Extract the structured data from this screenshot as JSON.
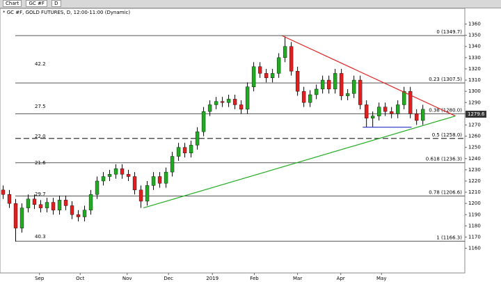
{
  "toolbar": {
    "window": "Chart",
    "symbol": "GC #F",
    "period": "D"
  },
  "chart_data": {
    "type": "candlestick",
    "title": "* GC #F, GOLD FUTURES, D, 12:00-11:00 (Dynamic)",
    "open": [
      1212,
      1208,
      1200,
      1178,
      1196,
      1204,
      1199,
      1196,
      1201,
      1194,
      1203,
      1198,
      1190,
      1188,
      1194,
      1208,
      1220,
      1224,
      1226,
      1231,
      1226,
      1224,
      1212,
      1202,
      1216,
      1224,
      1218,
      1228,
      1242,
      1250,
      1245,
      1252,
      1264,
      1282,
      1288,
      1291,
      1290,
      1293,
      1288,
      1284,
      1304,
      1322,
      1316,
      1312,
      1316,
      1330,
      1340,
      1318,
      1300,
      1290,
      1297,
      1302,
      1310,
      1302,
      1316,
      1296,
      1298,
      1310,
      1288,
      1276,
      1278,
      1286,
      1282,
      1280,
      1288,
      1300,
      1280,
      1274
    ],
    "high": [
      1216,
      1212,
      1204,
      1200,
      1208,
      1208,
      1203,
      1205,
      1205,
      1207,
      1207,
      1202,
      1194,
      1198,
      1212,
      1224,
      1228,
      1230,
      1235,
      1235,
      1230,
      1228,
      1216,
      1220,
      1228,
      1228,
      1232,
      1246,
      1254,
      1254,
      1256,
      1268,
      1286,
      1292,
      1295,
      1295,
      1297,
      1297,
      1292,
      1308,
      1326,
      1326,
      1320,
      1320,
      1334,
      1349,
      1344,
      1322,
      1304,
      1301,
      1306,
      1314,
      1314,
      1320,
      1320,
      1302,
      1314,
      1314,
      1292,
      1282,
      1290,
      1290,
      1286,
      1292,
      1304,
      1304,
      1284,
      1288
    ],
    "low": [
      1204,
      1196,
      1166,
      1174,
      1192,
      1195,
      1192,
      1192,
      1190,
      1190,
      1194,
      1186,
      1184,
      1184,
      1190,
      1204,
      1216,
      1220,
      1222,
      1222,
      1220,
      1208,
      1196,
      1198,
      1212,
      1214,
      1214,
      1224,
      1238,
      1241,
      1241,
      1248,
      1260,
      1278,
      1284,
      1286,
      1286,
      1284,
      1280,
      1280,
      1300,
      1312,
      1308,
      1308,
      1312,
      1326,
      1314,
      1296,
      1286,
      1286,
      1293,
      1298,
      1298,
      1298,
      1292,
      1292,
      1294,
      1284,
      1268,
      1268,
      1274,
      1278,
      1276,
      1276,
      1284,
      1276,
      1270,
      1270
    ],
    "close": [
      1208,
      1200,
      1178,
      1196,
      1204,
      1199,
      1196,
      1201,
      1194,
      1203,
      1198,
      1190,
      1188,
      1194,
      1208,
      1220,
      1224,
      1226,
      1231,
      1226,
      1224,
      1212,
      1202,
      1216,
      1224,
      1218,
      1228,
      1242,
      1250,
      1245,
      1252,
      1264,
      1282,
      1288,
      1291,
      1290,
      1293,
      1288,
      1284,
      1304,
      1322,
      1316,
      1312,
      1316,
      1330,
      1340,
      1318,
      1300,
      1290,
      1297,
      1302,
      1310,
      1302,
      1316,
      1296,
      1298,
      1310,
      1288,
      1276,
      1278,
      1286,
      1282,
      1280,
      1288,
      1300,
      1280,
      1274,
      1284
    ],
    "up_color": "#22aa22",
    "down_color": "#e02020",
    "xlim": [
      -0.5,
      73.7
    ],
    "ylim": [
      1138,
      1374
    ],
    "xticks": [
      {
        "value": 5.8,
        "label": "Sep"
      },
      {
        "value": 12.3,
        "label": "Oct"
      },
      {
        "value": 19.8,
        "label": "Nov"
      },
      {
        "value": 26.4,
        "label": "Dec"
      },
      {
        "value": 33.4,
        "label": "2019"
      },
      {
        "value": 40.1,
        "label": "Feb"
      },
      {
        "value": 47,
        "label": "Mar"
      },
      {
        "value": 53.9,
        "label": "Apr"
      },
      {
        "value": 60.4,
        "label": "May"
      }
    ],
    "yticks": [
      1160,
      1170,
      1180,
      1190,
      1200,
      1210,
      1220,
      1230,
      1240,
      1250,
      1260,
      1270,
      1280,
      1290,
      1300,
      1310,
      1320,
      1330,
      1340,
      1350,
      1360
    ],
    "fib_levels": [
      {
        "value": 1349.7,
        "label": "0 (1349.7)"
      },
      {
        "value": 1307.5,
        "label": "0.23 (1307.5)"
      },
      {
        "value": 1280.0,
        "label": "0.38 (1280.0)"
      },
      {
        "value": 1258.0,
        "label": "0.5 (1258.0)"
      },
      {
        "value": 1236.3,
        "label": "0.618 (1236.3)"
      },
      {
        "value": 1206.6,
        "label": "0.78 (1206.6)"
      },
      {
        "value": 1166.3,
        "label": "1 (1166.3)"
      }
    ],
    "trendlines": [
      {
        "color": "#e02020",
        "from": [
          44.5,
          1349.7
        ],
        "to": [
          72.2,
          1278
        ]
      },
      {
        "color": "#22aa22",
        "from": [
          22.4,
          1196
        ],
        "to": [
          72.2,
          1278
        ]
      },
      {
        "color": "#2030c0",
        "from": [
          57.4,
          1268
        ],
        "to": [
          65.2,
          1268
        ]
      }
    ],
    "side_labels": [
      "42.2",
      "27.5",
      "22.0",
      "21.6",
      "29.7",
      "40.3"
    ],
    "last_price": 1279.6
  }
}
